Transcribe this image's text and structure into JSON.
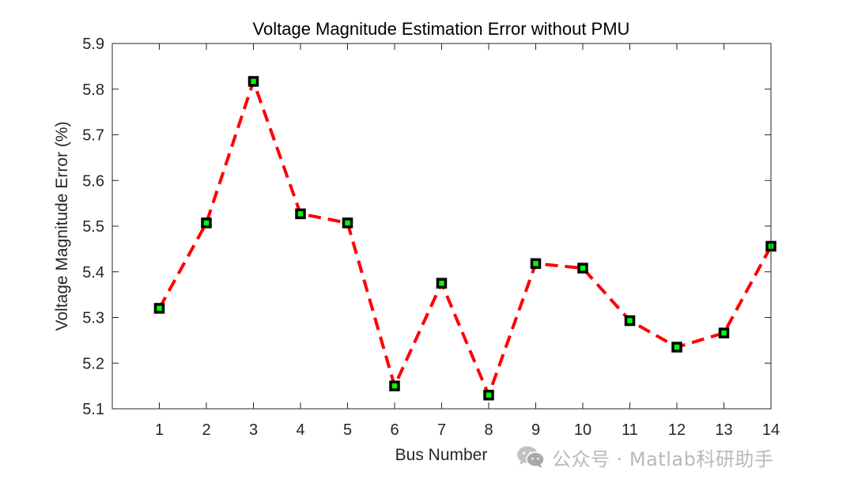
{
  "chart_data": {
    "type": "line",
    "title": "Voltage Magnitude Estimation Error without PMU",
    "xlabel": "Bus Number",
    "ylabel": "Voltage Magnitude Error (%)",
    "x": [
      1,
      2,
      3,
      4,
      5,
      6,
      7,
      8,
      9,
      10,
      11,
      12,
      13,
      14
    ],
    "values": [
      5.32,
      5.507,
      5.817,
      5.527,
      5.507,
      5.15,
      5.375,
      5.13,
      5.418,
      5.408,
      5.293,
      5.235,
      5.266,
      5.456
    ],
    "xlim": [
      0,
      14
    ],
    "ylim": [
      5.1,
      5.9
    ],
    "xticks": [
      "1",
      "2",
      "3",
      "4",
      "5",
      "6",
      "7",
      "8",
      "9",
      "10",
      "11",
      "12",
      "13",
      "14"
    ],
    "yticks": [
      "5.1",
      "5.2",
      "5.3",
      "5.4",
      "5.5",
      "5.6",
      "5.7",
      "5.8",
      "5.9"
    ],
    "line_color": "#ff0000",
    "line_style": "dashed",
    "marker": "square",
    "marker_edge_color": "#000000",
    "marker_face_color": "#00ff00",
    "grid": false
  },
  "watermark": {
    "text": "公众号 · Matlab科研助手",
    "icon": "wechat-icon",
    "color": "#b9b9b9"
  }
}
